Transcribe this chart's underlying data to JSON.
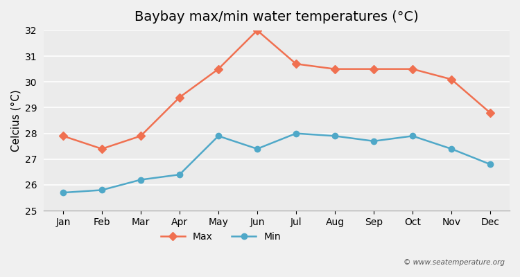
{
  "title": "Baybay max/min water temperatures (°C)",
  "xlabel": "",
  "ylabel": "Celcius (°C)",
  "months": [
    "Jan",
    "Feb",
    "Mar",
    "Apr",
    "May",
    "Jun",
    "Jul",
    "Aug",
    "Sep",
    "Oct",
    "Nov",
    "Dec"
  ],
  "max_temps": [
    27.9,
    27.4,
    27.9,
    29.4,
    30.5,
    32.0,
    30.7,
    30.5,
    30.5,
    30.5,
    30.1,
    28.8
  ],
  "min_temps": [
    25.7,
    25.8,
    26.2,
    26.4,
    27.9,
    27.4,
    28.0,
    27.9,
    27.7,
    27.9,
    27.4,
    26.8
  ],
  "max_color": "#f07050",
  "min_color": "#4fa8c8",
  "background_color": "#f0f0f0",
  "plot_bg_color": "#ebebeb",
  "ylim": [
    25,
    32
  ],
  "yticks": [
    25,
    26,
    27,
    28,
    29,
    30,
    31,
    32
  ],
  "grid_color": "#ffffff",
  "watermark": "© www.seatemperature.org",
  "title_fontsize": 14,
  "axis_fontsize": 11,
  "tick_fontsize": 10,
  "legend_fontsize": 10
}
